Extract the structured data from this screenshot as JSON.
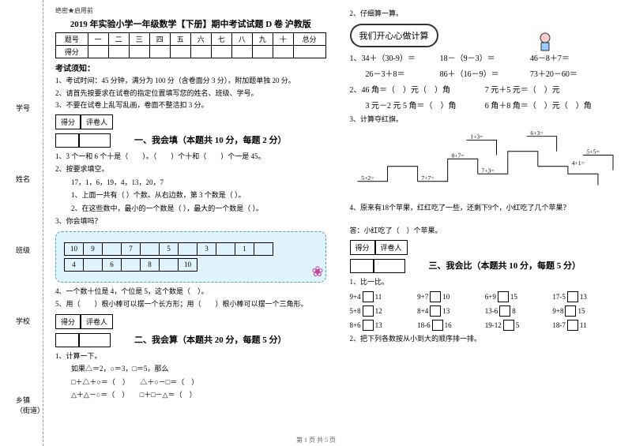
{
  "binding": {
    "labels": [
      "乡镇（街道）",
      "学校",
      "班级",
      "姓名",
      "学号"
    ],
    "dashes": [
      "封",
      "线",
      "内",
      "不",
      "答",
      "题"
    ]
  },
  "header": {
    "confidential": "绝密★启用前",
    "title": "2019 年实验小学一年级数学【下册】期中考试试题 D 卷 沪教版"
  },
  "scoreTable": {
    "headers": [
      "题号",
      "一",
      "二",
      "三",
      "四",
      "五",
      "六",
      "七",
      "八",
      "九",
      "十",
      "总分"
    ],
    "row2": "得分"
  },
  "notice": {
    "title": "考试须知：",
    "items": [
      "1、考试时间：45 分钟，满分为 100 分（含卷面分 3 分），附加题单独 20 分。",
      "2、请首先按要求在试卷的指定位置填写您的姓名、班级、学号。",
      "3、不要在试卷上乱写乱画，卷面不整洁扣 3 分。"
    ]
  },
  "section1": {
    "label1": "得分",
    "label2": "评卷人",
    "title": "一、我会填（本题共 10 分，每题 2 分）",
    "q1": "1、3 个一和 6 个十是（　　）。（　　）个十和（　　）个一是 45。",
    "q2": "2、按要求填空。",
    "q2nums": "17，1，6，19，4，13，20，7",
    "q2a": "1、上面一共有（  ）个数。从右边数，第 3 个数是（  ）。",
    "q2b": "2、在这些数中，最小的一个数是（  ），最大的一个数是（  ）。",
    "q3": "3、你会填吗？",
    "table1": [
      "10",
      "9",
      "",
      "7",
      "",
      "5",
      "",
      "3",
      "",
      "1",
      ""
    ],
    "table2": [
      "4",
      "",
      "6",
      "",
      "8",
      "",
      "10"
    ],
    "q4": "4、一个数十位是 4，个位是 5，这个数是（　）。",
    "q5": "5、用（　　）根小棒可以摆一个长方形；用（　　）根小棒可以摆一个三角形。"
  },
  "section2": {
    "label1": "得分",
    "label2": "评卷人",
    "title": "二、我会算（本题共 20 分，每题 5 分）",
    "q1": "1、计算一下。",
    "q1a": "如果△＝2，○＝3，□＝5，那么",
    "q1b": "□＋△＋○＝（　）　　△＋○－□＝（　）",
    "q1c": "△＋△－○＝（　）　　□＋□－△＝（　）",
    "q2": "2、仔细算一算。",
    "speech": "我们开心心做计算",
    "calc": [
      {
        "a": "1、34＋（30-9）＝",
        "b": "18－（9－3）＝",
        "c": "46－8＋7＝"
      },
      {
        "a": "　　26－3＋8＝",
        "b": "86＋（16－9）＝",
        "c": "73＋20－60＝"
      },
      {
        "a": "2、46 角＝（　）元（　）角",
        "b": "7 元＋5 元＝（　）元",
        "c": ""
      },
      {
        "a": "　　3 元－2 元 5 角＝（　）角",
        "b": "6 角＋8 角＝（　）元（　）角",
        "c": ""
      }
    ],
    "q3": "3、计算夺红旗。",
    "flags": [
      "5+2=",
      "7+7=",
      "0+7=",
      "7+3=",
      "1+3=",
      "6+3=",
      "4+1=",
      "5+5="
    ],
    "q4": "4、原来有18个苹果，红红吃了一些，还剩下9个，小红吃了几个苹果？",
    "q4ans": "答：小红吃了（　）个苹果。"
  },
  "section3": {
    "label1": "得分",
    "label2": "评卷人",
    "title": "三、我会比（本题共 10 分，每题 5 分）",
    "q1": "1、比一比。",
    "compares": [
      [
        {
          "l": "9+4",
          "r": "11"
        },
        {
          "l": "9+7",
          "r": "10"
        },
        {
          "l": "6+9",
          "r": "15"
        },
        {
          "l": "17-5",
          "r": "13"
        }
      ],
      [
        {
          "l": "5+8",
          "r": "12"
        },
        {
          "l": "8+4",
          "r": "13"
        },
        {
          "l": "13-6",
          "r": "8"
        },
        {
          "l": "9+8",
          "r": "15"
        }
      ],
      [
        {
          "l": "8+6",
          "r": "13"
        },
        {
          "l": "18-6",
          "r": "16"
        },
        {
          "l": "19-12",
          "r": "5"
        },
        {
          "l": "18-7",
          "r": "11"
        }
      ]
    ],
    "q2": "2、把下列各数按从小到大的顺序排一排。"
  },
  "footer": "第 1 页 共 5 页"
}
